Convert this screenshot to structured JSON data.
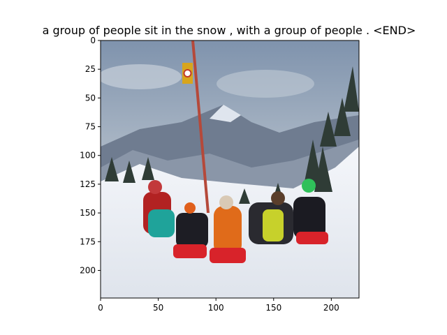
{
  "chart_data": {
    "type": "image",
    "title": "a group of people sit in the snow , with a group of people . <END>",
    "xlim": [
      0,
      224
    ],
    "ylim": [
      224,
      0
    ],
    "x_ticks": [
      0,
      50,
      100,
      150,
      200
    ],
    "y_ticks": [
      0,
      25,
      50,
      75,
      100,
      125,
      150,
      175,
      200
    ],
    "image_content": "photo: group of children sitting on sleds in snow, mountains and pine trees behind, red pole with sign",
    "colors": {
      "sky": "#9aa8b8",
      "snow": "#eef1f6",
      "mountain": "#6e7a8e"
    }
  }
}
